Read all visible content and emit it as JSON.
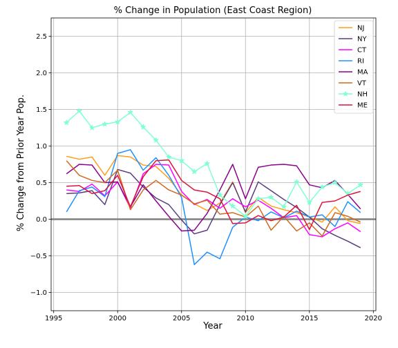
{
  "chart_data": {
    "type": "line",
    "title": "% Change in Population (East Coast Region)",
    "xlabel": "Year",
    "ylabel": "% Change from Prior Year Pop.",
    "xlim": [
      1994.8,
      2020.2
    ],
    "ylim": [
      -1.25,
      2.75
    ],
    "xticks": [
      1995,
      2000,
      2005,
      2010,
      2015,
      2020
    ],
    "yticks": [
      -1.0,
      -0.5,
      0.0,
      0.5,
      1.0,
      1.5,
      2.0,
      2.5
    ],
    "ytick_labels": [
      "−1.0",
      "−0.5",
      "0.0",
      "0.5",
      "1.0",
      "1.5",
      "2.0",
      "2.5"
    ],
    "grid": true,
    "zero_line": true,
    "legend_position": "top-right",
    "x": [
      1996,
      1997,
      1998,
      1999,
      2000,
      2001,
      2002,
      2003,
      2004,
      2005,
      2006,
      2007,
      2008,
      2009,
      2010,
      2011,
      2012,
      2013,
      2014,
      2015,
      2016,
      2017,
      2018,
      2019
    ],
    "series": [
      {
        "name": "NJ",
        "color": "#ff9e1b",
        "marker": "none",
        "values": [
          0.86,
          0.82,
          0.85,
          0.6,
          0.87,
          0.85,
          0.74,
          0.72,
          0.56,
          0.33,
          0.21,
          0.12,
          0.22,
          0.51,
          0.09,
          0.3,
          0.18,
          0.13,
          0.09,
          0.03,
          -0.04,
          0.17,
          -0.02,
          -0.06
        ]
      },
      {
        "name": "NY",
        "color": "#5b3c7f",
        "marker": "none",
        "values": [
          0.35,
          0.36,
          0.39,
          0.2,
          0.68,
          0.63,
          0.44,
          0.29,
          0.2,
          -0.01,
          -0.2,
          -0.15,
          0.2,
          0.5,
          0.1,
          0.51,
          0.39,
          0.27,
          0.16,
          0.03,
          -0.13,
          -0.22,
          -0.3,
          -0.39
        ]
      },
      {
        "name": "CT",
        "color": "#ff00ff",
        "marker": "none",
        "values": [
          0.4,
          0.38,
          0.48,
          0.32,
          0.51,
          0.15,
          0.62,
          0.75,
          0.74,
          0.38,
          0.2,
          0.27,
          0.15,
          0.28,
          0.17,
          0.26,
          0.15,
          0.02,
          0.05,
          -0.21,
          -0.24,
          -0.13,
          -0.05,
          -0.17
        ]
      },
      {
        "name": "RI",
        "color": "#1e90ff",
        "marker": "none",
        "values": [
          0.1,
          0.39,
          0.44,
          0.31,
          0.9,
          0.95,
          0.67,
          0.84,
          0.6,
          0.3,
          -0.62,
          -0.45,
          -0.54,
          -0.11,
          0.03,
          -0.02,
          0.1,
          0.02,
          0.11,
          0.03,
          0.06,
          -0.1,
          0.24,
          0.09
        ]
      },
      {
        "name": "MA",
        "color": "#8b008b",
        "marker": "none",
        "values": [
          0.62,
          0.75,
          0.74,
          0.5,
          0.51,
          0.17,
          0.47,
          0.25,
          0.04,
          -0.16,
          -0.15,
          0.08,
          0.4,
          0.75,
          0.28,
          0.71,
          0.74,
          0.75,
          0.73,
          0.47,
          0.43,
          0.53,
          0.34,
          0.14
        ]
      },
      {
        "name": "VT",
        "color": "#d2691e",
        "marker": "none",
        "values": [
          0.8,
          0.6,
          0.53,
          0.5,
          0.67,
          0.13,
          0.4,
          0.53,
          0.4,
          0.33,
          0.21,
          0.26,
          0.07,
          0.09,
          0.03,
          0.18,
          -0.15,
          0.04,
          -0.16,
          -0.05,
          -0.23,
          0.09,
          0.04,
          -0.04
        ]
      },
      {
        "name": "NH",
        "color": "#7fffd4",
        "marker": "star",
        "values": [
          1.32,
          1.48,
          1.25,
          1.3,
          1.33,
          1.46,
          1.26,
          1.08,
          0.85,
          0.8,
          0.65,
          0.76,
          0.33,
          0.18,
          0.04,
          0.28,
          0.3,
          0.17,
          0.51,
          0.23,
          0.44,
          0.5,
          0.35,
          0.47
        ]
      },
      {
        "name": "ME",
        "color": "#dc143c",
        "marker": "none",
        "values": [
          0.45,
          0.46,
          0.35,
          0.39,
          0.6,
          0.17,
          0.58,
          0.8,
          0.81,
          0.53,
          0.4,
          0.37,
          0.28,
          -0.06,
          -0.05,
          0.05,
          -0.02,
          0.03,
          0.19,
          -0.14,
          0.23,
          0.25,
          0.33,
          0.38
        ]
      }
    ]
  }
}
